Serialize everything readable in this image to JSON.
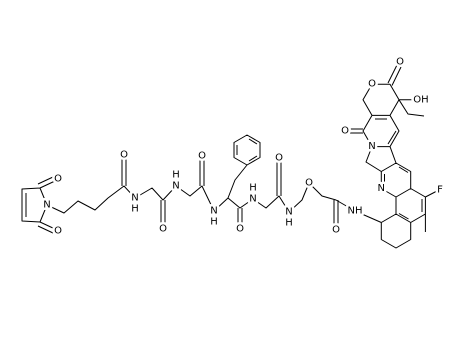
{
  "atom_labels": [
    "O",
    "O",
    "N",
    "O",
    "N",
    "H",
    "O",
    "N",
    "H",
    "O",
    "N",
    "H",
    "O",
    "N",
    "H",
    "O",
    "N",
    "H",
    "O",
    "O",
    "NH",
    "F",
    "N",
    "N",
    "O",
    "O",
    "O",
    "OH"
  ]
}
